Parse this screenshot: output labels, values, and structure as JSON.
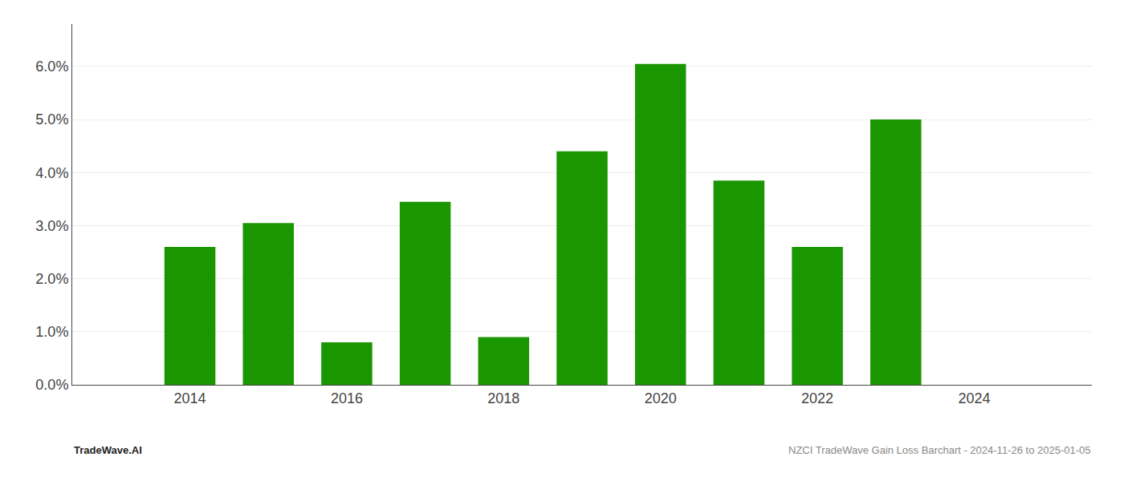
{
  "chart_data": {
    "type": "bar",
    "x": [
      2014,
      2015,
      2016,
      2017,
      2018,
      2019,
      2020,
      2021,
      2022,
      2023
    ],
    "values": [
      0.026,
      0.0305,
      0.008,
      0.0345,
      0.009,
      0.044,
      0.0605,
      0.0385,
      0.026,
      0.05
    ],
    "color": "#1a9600",
    "xlim": [
      2012.5,
      2025.5
    ],
    "xticks": [
      2014,
      2016,
      2018,
      2020,
      2022,
      2024
    ],
    "ylim": [
      0,
      0.068
    ],
    "yticks": [
      {
        "value": 0.0,
        "label": "0.0%"
      },
      {
        "value": 0.01,
        "label": "1.0%"
      },
      {
        "value": 0.02,
        "label": "2.0%"
      },
      {
        "value": 0.03,
        "label": "3.0%"
      },
      {
        "value": 0.04,
        "label": "4.0%"
      },
      {
        "value": 0.05,
        "label": "5.0%"
      },
      {
        "value": 0.06,
        "label": "6.0%"
      }
    ],
    "grid": true,
    "annotations": [
      "TradeWave.AI",
      "NZCI TradeWave Gain Loss Barchart - 2024-11-26 to 2025-01-05"
    ]
  }
}
